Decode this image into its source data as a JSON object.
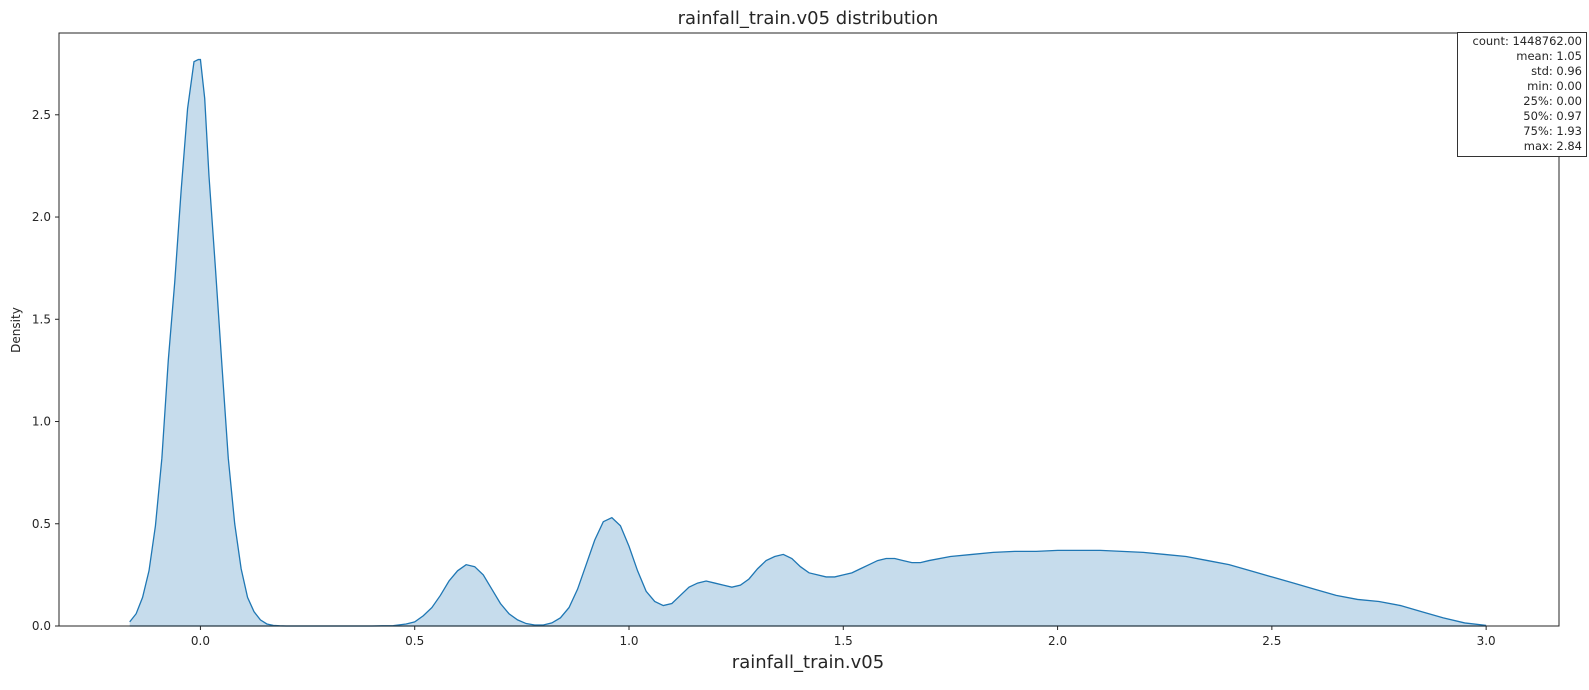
{
  "chart_data": {
    "type": "area",
    "title": "rainfall_train.v05 distribution",
    "xlabel": "rainfall_train.v05",
    "ylabel": "Density",
    "xlim": [
      -0.33,
      3.17
    ],
    "ylim": [
      0,
      2.9
    ],
    "xticks": [
      0.0,
      0.5,
      1.0,
      1.5,
      2.0,
      2.5,
      3.0
    ],
    "xtick_labels": [
      "0.0",
      "0.5",
      "1.0",
      "1.5",
      "2.0",
      "2.5",
      "3.0"
    ],
    "yticks": [
      0.0,
      0.5,
      1.0,
      1.5,
      2.0,
      2.5
    ],
    "ytick_labels": [
      "0.0",
      "0.5",
      "1.0",
      "1.5",
      "2.0",
      "2.5"
    ],
    "grid": false,
    "line_color": "#1f77b4",
    "fill_color": "#c6dcec",
    "series": [
      {
        "x": [
          -0.165,
          -0.15,
          -0.135,
          -0.12,
          -0.105,
          -0.09,
          -0.075,
          -0.06,
          -0.045,
          -0.03,
          -0.015,
          -0.005,
          0.0,
          0.01,
          0.02,
          0.035,
          0.05,
          0.065,
          0.08,
          0.095,
          0.11,
          0.125,
          0.14,
          0.155,
          0.17,
          0.185,
          0.2,
          0.22,
          0.25,
          0.3,
          0.4,
          0.45,
          0.48,
          0.5,
          0.52,
          0.54,
          0.56,
          0.58,
          0.6,
          0.62,
          0.64,
          0.66,
          0.68,
          0.7,
          0.72,
          0.74,
          0.76,
          0.78,
          0.8,
          0.82,
          0.84,
          0.86,
          0.88,
          0.9,
          0.92,
          0.94,
          0.96,
          0.98,
          1.0,
          1.02,
          1.04,
          1.06,
          1.08,
          1.1,
          1.12,
          1.14,
          1.16,
          1.18,
          1.2,
          1.22,
          1.24,
          1.26,
          1.28,
          1.3,
          1.32,
          1.34,
          1.36,
          1.38,
          1.4,
          1.42,
          1.44,
          1.46,
          1.48,
          1.5,
          1.52,
          1.54,
          1.56,
          1.58,
          1.6,
          1.62,
          1.64,
          1.66,
          1.68,
          1.7,
          1.75,
          1.8,
          1.85,
          1.9,
          1.95,
          2.0,
          2.05,
          2.1,
          2.15,
          2.2,
          2.25,
          2.3,
          2.35,
          2.4,
          2.45,
          2.5,
          2.55,
          2.6,
          2.65,
          2.7,
          2.75,
          2.8,
          2.85,
          2.9,
          2.95,
          3.0
        ],
        "y": [
          0.02,
          0.06,
          0.14,
          0.27,
          0.49,
          0.82,
          1.3,
          1.68,
          2.13,
          2.53,
          2.76,
          2.77,
          2.77,
          2.58,
          2.2,
          1.75,
          1.28,
          0.82,
          0.5,
          0.28,
          0.14,
          0.07,
          0.03,
          0.01,
          0.003,
          0.001,
          0.0,
          0.0,
          0.0,
          0.0,
          0.0,
          0.002,
          0.01,
          0.02,
          0.05,
          0.09,
          0.15,
          0.22,
          0.27,
          0.3,
          0.29,
          0.25,
          0.18,
          0.11,
          0.06,
          0.03,
          0.012,
          0.005,
          0.005,
          0.015,
          0.04,
          0.09,
          0.18,
          0.3,
          0.42,
          0.51,
          0.53,
          0.49,
          0.39,
          0.27,
          0.17,
          0.12,
          0.1,
          0.11,
          0.15,
          0.19,
          0.21,
          0.22,
          0.21,
          0.2,
          0.19,
          0.2,
          0.23,
          0.28,
          0.32,
          0.34,
          0.35,
          0.33,
          0.29,
          0.26,
          0.25,
          0.24,
          0.24,
          0.25,
          0.26,
          0.28,
          0.3,
          0.32,
          0.33,
          0.33,
          0.32,
          0.31,
          0.31,
          0.32,
          0.34,
          0.35,
          0.36,
          0.365,
          0.365,
          0.37,
          0.37,
          0.37,
          0.365,
          0.36,
          0.35,
          0.34,
          0.32,
          0.3,
          0.27,
          0.24,
          0.21,
          0.18,
          0.15,
          0.13,
          0.12,
          0.1,
          0.07,
          0.04,
          0.015,
          0.003
        ]
      }
    ]
  },
  "stats": {
    "lines": [
      "count: 1448762.00",
      "mean: 1.05",
      "std: 0.96",
      "min: 0.00",
      "25%: 0.00",
      "50%: 0.97",
      "75%: 1.93",
      "max: 2.84"
    ]
  }
}
